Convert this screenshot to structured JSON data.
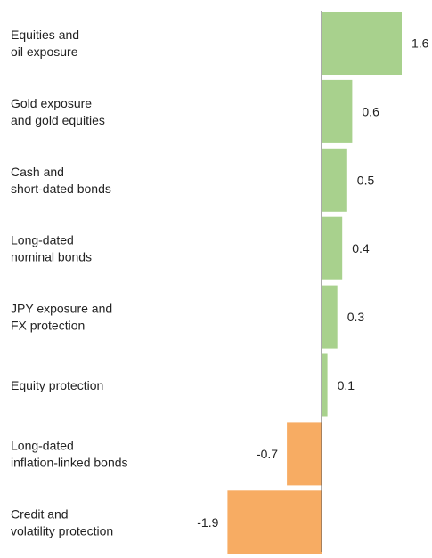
{
  "chart_data": {
    "type": "bar",
    "orientation": "horizontal",
    "title": "",
    "xlabel": "",
    "ylabel": "",
    "grid": false,
    "xlim": [
      -2.0,
      1.7
    ],
    "categories": [
      [
        "Equities and",
        "oil exposure"
      ],
      [
        "Gold exposure",
        "and gold equities"
      ],
      [
        "Cash and",
        "short-dated bonds"
      ],
      [
        "Long-dated",
        "nominal bonds"
      ],
      [
        "JPY exposure and",
        "FX protection"
      ],
      [
        "Equity protection"
      ],
      [
        "Long-dated",
        "inflation-linked bonds"
      ],
      [
        "Credit and",
        "volatility protection"
      ]
    ],
    "values": [
      1.6,
      0.6,
      0.5,
      0.4,
      0.3,
      0.1,
      -0.7,
      -1.9
    ],
    "value_labels": [
      "1.6",
      "0.6",
      "0.5",
      "0.4",
      "0.3",
      "0.1",
      "-0.7",
      "-1.9"
    ],
    "colors": {
      "positive": "#a8d18d",
      "negative": "#f7ac63",
      "axis": "#555555",
      "text": "#222222"
    }
  }
}
